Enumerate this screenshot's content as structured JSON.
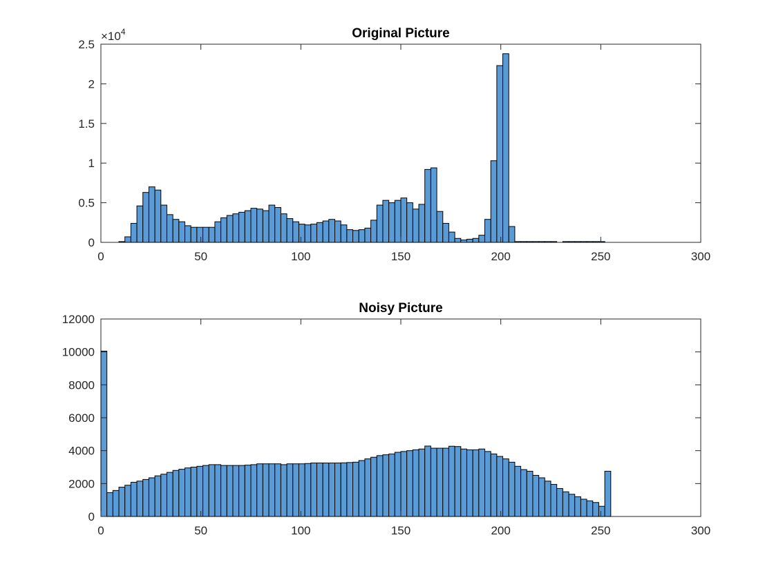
{
  "figure": {
    "background": "#ffffff"
  },
  "chart_data": [
    {
      "type": "bar",
      "title": "Original Picture",
      "xlabel": "",
      "ylabel": "",
      "xlim": [
        0,
        300
      ],
      "ylim": [
        0,
        25000
      ],
      "xticks": [
        0,
        50,
        100,
        150,
        200,
        250,
        300
      ],
      "xtick_labels": [
        "0",
        "50",
        "100",
        "150",
        "200",
        "250",
        "300"
      ],
      "yticks": [
        0,
        5000,
        10000,
        15000,
        20000,
        25000
      ],
      "ytick_labels": [
        "0",
        "0.5",
        "1",
        "1.5",
        "2",
        "2.5"
      ],
      "y_exponent_label": {
        "base": "×10",
        "power": "4"
      },
      "grid": false,
      "bar_color": "#5b9bd5",
      "bin_width": 3,
      "bin_starts": [
        9,
        12,
        15,
        18,
        21,
        24,
        27,
        30,
        33,
        36,
        39,
        42,
        45,
        48,
        51,
        54,
        57,
        60,
        63,
        66,
        69,
        72,
        75,
        78,
        81,
        84,
        87,
        90,
        93,
        96,
        99,
        102,
        105,
        108,
        111,
        114,
        117,
        120,
        123,
        126,
        129,
        132,
        135,
        138,
        141,
        144,
        147,
        150,
        153,
        156,
        159,
        162,
        165,
        168,
        171,
        174,
        177,
        180,
        183,
        186,
        189,
        192,
        195,
        198,
        201,
        204,
        207,
        210,
        213,
        216,
        219,
        222,
        225,
        228,
        231,
        234,
        237,
        240,
        243,
        246,
        249,
        252
      ],
      "values": [
        100,
        700,
        2400,
        4600,
        6300,
        7000,
        6600,
        4700,
        3500,
        2900,
        2600,
        2100,
        1900,
        1900,
        1900,
        1900,
        2600,
        3100,
        3400,
        3600,
        3800,
        4000,
        4300,
        4200,
        4000,
        4700,
        4400,
        3600,
        3000,
        2600,
        2300,
        2200,
        2300,
        2500,
        2700,
        2900,
        2700,
        2200,
        1600,
        1500,
        1600,
        1800,
        2800,
        4700,
        5300,
        5000,
        5300,
        5600,
        5000,
        4200,
        4800,
        9200,
        9400,
        3900,
        2400,
        1300,
        500,
        300,
        400,
        500,
        900,
        2900,
        10300,
        22300,
        23800,
        2000,
        100,
        100,
        100,
        100,
        100,
        100,
        100,
        0,
        100,
        100,
        100,
        100,
        100,
        100,
        100,
        0
      ]
    },
    {
      "type": "bar",
      "title": "Noisy Picture",
      "xlabel": "",
      "ylabel": "",
      "xlim": [
        0,
        300
      ],
      "ylim": [
        0,
        12000
      ],
      "xticks": [
        0,
        50,
        100,
        150,
        200,
        250,
        300
      ],
      "xtick_labels": [
        "0",
        "50",
        "100",
        "150",
        "200",
        "250",
        "300"
      ],
      "yticks": [
        0,
        2000,
        4000,
        6000,
        8000,
        10000,
        12000
      ],
      "ytick_labels": [
        "0",
        "2000",
        "4000",
        "6000",
        "8000",
        "10000",
        "12000"
      ],
      "grid": false,
      "bar_color": "#5b9bd5",
      "bin_width": 3,
      "bin_starts": [
        0,
        3,
        6,
        9,
        12,
        15,
        18,
        21,
        24,
        27,
        30,
        33,
        36,
        39,
        42,
        45,
        48,
        51,
        54,
        57,
        60,
        63,
        66,
        69,
        72,
        75,
        78,
        81,
        84,
        87,
        90,
        93,
        96,
        99,
        102,
        105,
        108,
        111,
        114,
        117,
        120,
        123,
        126,
        129,
        132,
        135,
        138,
        141,
        144,
        147,
        150,
        153,
        156,
        159,
        162,
        165,
        168,
        171,
        174,
        177,
        180,
        183,
        186,
        189,
        192,
        195,
        198,
        201,
        204,
        207,
        210,
        213,
        216,
        219,
        222,
        225,
        228,
        231,
        234,
        237,
        240,
        243,
        246,
        249,
        252
      ],
      "values": [
        10050,
        1450,
        1580,
        1780,
        1900,
        2080,
        2150,
        2250,
        2350,
        2470,
        2570,
        2680,
        2800,
        2870,
        2950,
        3000,
        3050,
        3100,
        3150,
        3150,
        3100,
        3100,
        3100,
        3100,
        3120,
        3150,
        3200,
        3200,
        3200,
        3200,
        3150,
        3200,
        3200,
        3200,
        3220,
        3250,
        3250,
        3250,
        3250,
        3250,
        3260,
        3280,
        3300,
        3400,
        3500,
        3600,
        3700,
        3750,
        3800,
        3900,
        3950,
        4000,
        4050,
        4100,
        4280,
        4150,
        4150,
        4150,
        4270,
        4250,
        4100,
        4050,
        4050,
        4100,
        3950,
        3800,
        3650,
        3500,
        3300,
        3050,
        2850,
        2750,
        2500,
        2350,
        2150,
        1950,
        1700,
        1500,
        1350,
        1200,
        1050,
        950,
        850,
        620,
        2750
      ]
    }
  ]
}
